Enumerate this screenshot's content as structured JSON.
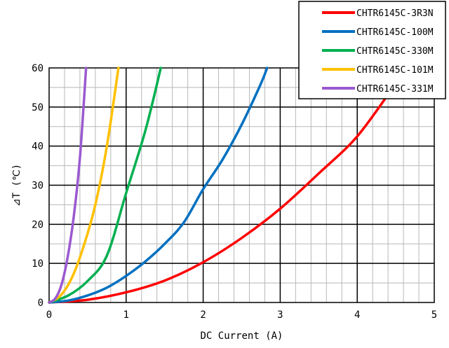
{
  "chart_data": {
    "type": "line",
    "xlabel": "DC Current (A)",
    "ylabel": "⊿T (℃)",
    "xlim": [
      0,
      5
    ],
    "ylim": [
      0,
      60
    ],
    "x_ticks": [
      "0",
      "1",
      "2",
      "3",
      "4",
      "5"
    ],
    "y_ticks": [
      "0",
      "10",
      "20",
      "30",
      "40",
      "50",
      "60"
    ],
    "grid": true,
    "legend_position": "top-right",
    "series": [
      {
        "name": "CHTR6145C-3R3N",
        "color": "#ff0000",
        "points": [
          [
            0,
            0
          ],
          [
            0.5,
            0.7
          ],
          [
            1.0,
            2.6
          ],
          [
            1.5,
            5.6
          ],
          [
            2.0,
            10.3
          ],
          [
            2.5,
            16.5
          ],
          [
            3.0,
            24.0
          ],
          [
            3.5,
            33.0
          ],
          [
            4.0,
            42.5
          ],
          [
            4.5,
            56.0
          ]
        ]
      },
      {
        "name": "CHTR6145C-100M",
        "color": "#0070c0",
        "points": [
          [
            0,
            0
          ],
          [
            0.25,
            0.5
          ],
          [
            0.5,
            1.8
          ],
          [
            0.75,
            3.8
          ],
          [
            1.0,
            6.8
          ],
          [
            1.25,
            10.5
          ],
          [
            1.5,
            15.0
          ],
          [
            1.75,
            20.5
          ],
          [
            2.0,
            29.0
          ],
          [
            2.25,
            36.5
          ],
          [
            2.5,
            45.5
          ],
          [
            2.75,
            56.0
          ],
          [
            2.83,
            60.0
          ]
        ]
      },
      {
        "name": "CHTR6145C-330M",
        "color": "#00b050",
        "points": [
          [
            0,
            0
          ],
          [
            0.25,
            1.8
          ],
          [
            0.5,
            5.5
          ],
          [
            0.75,
            12.0
          ],
          [
            1.0,
            28.0
          ],
          [
            1.25,
            44.0
          ],
          [
            1.45,
            60.0
          ]
        ]
      },
      {
        "name": "CHTR6145C-101M",
        "color": "#ffc000",
        "points": [
          [
            0,
            0
          ],
          [
            0.15,
            1.8
          ],
          [
            0.3,
            6.5
          ],
          [
            0.45,
            14.5
          ],
          [
            0.6,
            25.0
          ],
          [
            0.75,
            40.0
          ],
          [
            0.9,
            60.0
          ]
        ]
      },
      {
        "name": "CHTR6145C-331M",
        "color": "#9b59d0",
        "points": [
          [
            0,
            0
          ],
          [
            0.08,
            1.0
          ],
          [
            0.16,
            4.5
          ],
          [
            0.24,
            11.5
          ],
          [
            0.32,
            22.0
          ],
          [
            0.4,
            37.0
          ],
          [
            0.48,
            60.0
          ]
        ]
      }
    ]
  }
}
